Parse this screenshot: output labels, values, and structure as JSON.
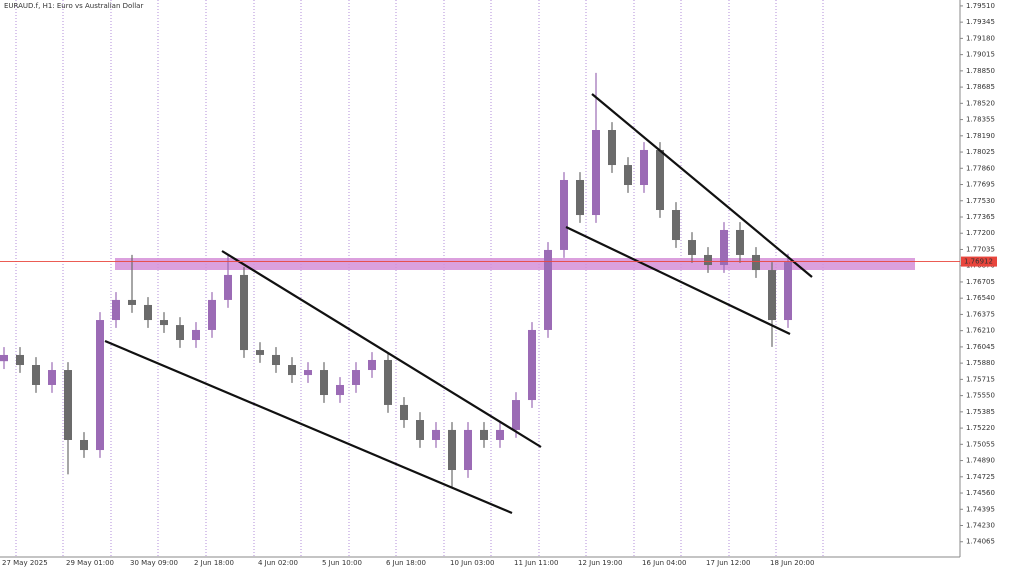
{
  "chart_data": {
    "type": "candlestick",
    "title": "EURAUD.f, H1:  Euro vs Australian Dollar",
    "categories": [
      "27 May 2025",
      null,
      null,
      null,
      "29 May 01:00",
      null,
      null,
      null,
      "30 May 09:00",
      null,
      null,
      null,
      "2 Jun 18:00",
      null,
      null,
      null,
      "4 Jun 02:00",
      null,
      null,
      null,
      "5 Jun 10:00",
      null,
      null,
      null,
      "6 Jun 18:00",
      null,
      null,
      null,
      "10 Jun 03:00",
      null,
      null,
      null,
      "11 Jun 11:00",
      null,
      null,
      null,
      "12 Jun 19:00",
      null,
      null,
      null,
      "16 Jun 04:00",
      null,
      null,
      null,
      "17 Jun 12:00",
      null,
      null,
      null,
      "18 Jun 20:00",
      null
    ],
    "open": [
      1.759,
      1.75963,
      1.75861,
      1.75658,
      1.7581,
      1.75099,
      1.74997,
      1.76318,
      1.76522,
      1.76471,
      1.76318,
      1.76267,
      1.76115,
      1.76217,
      1.76522,
      1.76776,
      1.76013,
      1.75963,
      1.75861,
      1.75759,
      1.7581,
      1.75556,
      1.75658,
      1.7581,
      1.75912,
      1.75455,
      1.75302,
      1.75099,
      1.75201,
      1.74794,
      1.75201,
      1.75099,
      1.75201,
      1.75505,
      1.76217,
      1.7703,
      1.77741,
      1.77385,
      1.78249,
      1.77893,
      1.7769,
      1.78046,
      1.77436,
      1.77131,
      1.76979,
      1.76877,
      1.77233,
      1.76979,
      1.76826,
      1.76318
    ],
    "high": [
      1.76043,
      1.76043,
      1.75941,
      1.7589,
      1.7589,
      1.75179,
      1.76398,
      1.76602,
      1.7698,
      1.76551,
      1.76398,
      1.76347,
      1.76297,
      1.76602,
      1.7698,
      1.76856,
      1.76093,
      1.76043,
      1.75941,
      1.7589,
      1.7589,
      1.75738,
      1.7589,
      1.75992,
      1.75992,
      1.75535,
      1.75382,
      1.75281,
      1.75281,
      1.75281,
      1.75281,
      1.75281,
      1.75585,
      1.76297,
      1.7711,
      1.77821,
      1.77821,
      1.7883,
      1.78329,
      1.77973,
      1.78126,
      1.78126,
      1.77516,
      1.77211,
      1.77059,
      1.77313,
      1.77313,
      1.77059,
      1.76906,
      1.76992
    ],
    "low": [
      1.7582,
      1.75781,
      1.75578,
      1.75578,
      1.7475,
      1.74917,
      1.74917,
      1.76238,
      1.76391,
      1.76238,
      1.76187,
      1.76035,
      1.76035,
      1.76137,
      1.76442,
      1.75933,
      1.75883,
      1.75781,
      1.75679,
      1.75679,
      1.75476,
      1.75476,
      1.75578,
      1.7573,
      1.75375,
      1.75222,
      1.75019,
      1.75019,
      1.7462,
      1.74714,
      1.75019,
      1.75019,
      1.75121,
      1.75425,
      1.76137,
      1.7695,
      1.77305,
      1.77305,
      1.77813,
      1.7761,
      1.7761,
      1.77356,
      1.77051,
      1.76899,
      1.76797,
      1.76797,
      1.76899,
      1.76746,
      1.76045,
      1.76238
    ],
    "close": [
      1.75963,
      1.75861,
      1.75658,
      1.7581,
      1.75099,
      1.74997,
      1.76318,
      1.76522,
      1.76471,
      1.76318,
      1.76267,
      1.76115,
      1.76217,
      1.76522,
      1.76776,
      1.76013,
      1.75963,
      1.75861,
      1.75759,
      1.7581,
      1.75556,
      1.75658,
      1.7581,
      1.75912,
      1.75455,
      1.75302,
      1.75099,
      1.75201,
      1.74794,
      1.75201,
      1.75099,
      1.75201,
      1.75505,
      1.76217,
      1.7703,
      1.77741,
      1.77385,
      1.78249,
      1.77893,
      1.7769,
      1.78046,
      1.77436,
      1.77131,
      1.76979,
      1.76877,
      1.77233,
      1.76979,
      1.76826,
      1.76318,
      1.76912
    ],
    "up_color": "#9b6bb5",
    "down_color": "#6b6b6b",
    "current_price": 1.76912,
    "current_price_color": "#e8453c",
    "ylim": [
      1.7391,
      1.7957
    ],
    "yticks": [
      {
        "value": 1.7951,
        "label": "1.79510"
      },
      {
        "value": 1.79345,
        "label": "1.79345"
      },
      {
        "value": 1.7918,
        "label": "1.79180"
      },
      {
        "value": 1.79015,
        "label": "1.79015"
      },
      {
        "value": 1.7885,
        "label": "1.78850"
      },
      {
        "value": 1.78685,
        "label": "1.78685"
      },
      {
        "value": 1.7852,
        "label": "1.78520"
      },
      {
        "value": 1.78355,
        "label": "1.78355"
      },
      {
        "value": 1.7819,
        "label": "1.78190"
      },
      {
        "value": 1.78025,
        "label": "1.78025"
      },
      {
        "value": 1.7786,
        "label": "1.77860"
      },
      {
        "value": 1.77695,
        "label": "1.77695"
      },
      {
        "value": 1.7753,
        "label": "1.77530"
      },
      {
        "value": 1.77365,
        "label": "1.77365"
      },
      {
        "value": 1.772,
        "label": "1.77200"
      },
      {
        "value": 1.77035,
        "label": "1.77035"
      },
      {
        "value": 1.7687,
        "label": "1.76870"
      },
      {
        "value": 1.76705,
        "label": "1.76705"
      },
      {
        "value": 1.7654,
        "label": "1.76540"
      },
      {
        "value": 1.76375,
        "label": "1.76375"
      },
      {
        "value": 1.7621,
        "label": "1.76210"
      },
      {
        "value": 1.76045,
        "label": "1.76045"
      },
      {
        "value": 1.7588,
        "label": "1.75880"
      },
      {
        "value": 1.75715,
        "label": "1.75715"
      },
      {
        "value": 1.7555,
        "label": "1.75550"
      },
      {
        "value": 1.75385,
        "label": "1.75385"
      },
      {
        "value": 1.7522,
        "label": "1.75220"
      },
      {
        "value": 1.75055,
        "label": "1.75055"
      },
      {
        "value": 1.7489,
        "label": "1.74890"
      },
      {
        "value": 1.74725,
        "label": "1.74725"
      },
      {
        "value": 1.7456,
        "label": "1.74560"
      },
      {
        "value": 1.74395,
        "label": "1.74395"
      },
      {
        "value": 1.7423,
        "label": "1.74230"
      },
      {
        "value": 1.74065,
        "label": "1.74065"
      }
    ]
  }
}
